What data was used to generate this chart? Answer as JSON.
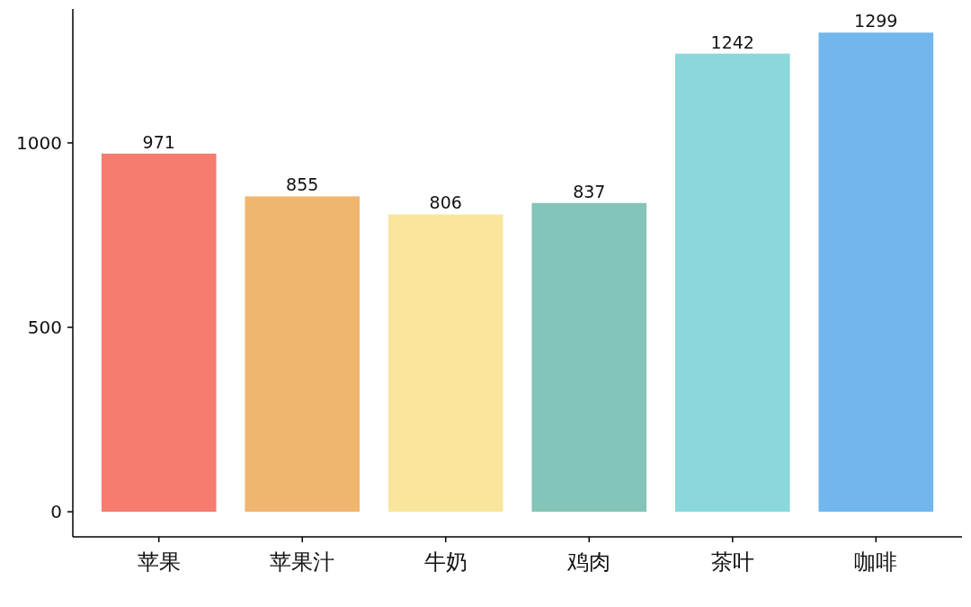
{
  "chart_data": {
    "type": "bar",
    "categories": [
      "苹果",
      "苹果汁",
      "牛奶",
      "鸡肉",
      "茶叶",
      "咖啡"
    ],
    "values": [
      971,
      855,
      806,
      837,
      1242,
      1299
    ],
    "colors": [
      "#f57c6e",
      "#f0b670",
      "#f9e59c",
      "#85c4b8",
      "#8ad7dc",
      "#71b7ed"
    ],
    "ylim": [
      -68,
      1363
    ],
    "yticks": [
      0,
      500,
      1000
    ],
    "data_labels": true
  }
}
